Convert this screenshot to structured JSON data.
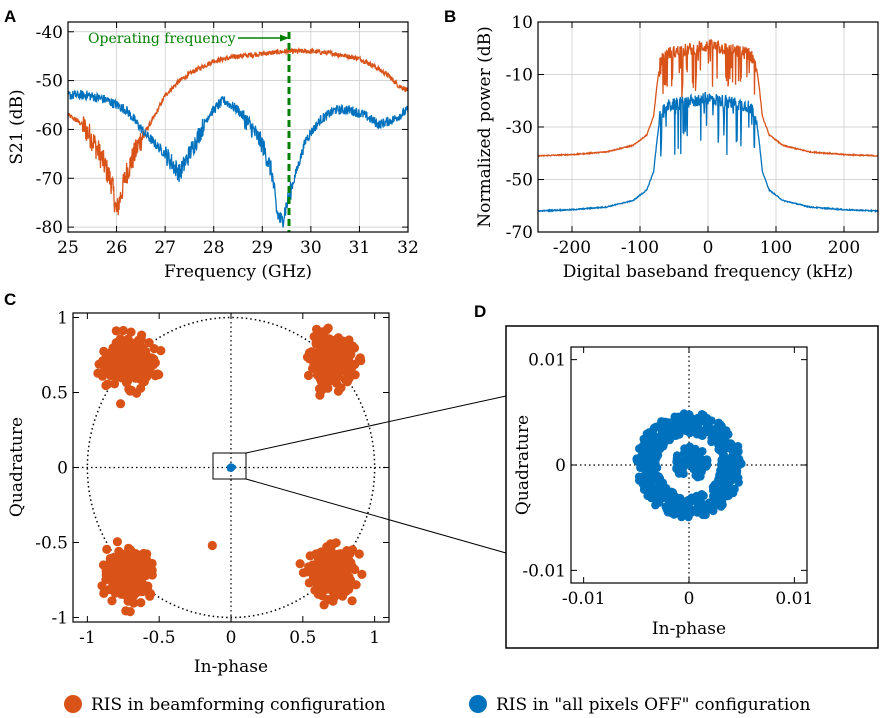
{
  "colors": {
    "orange": "#d95319",
    "blue": "#0072bd",
    "green": "#008000",
    "black": "#000000"
  },
  "legend": [
    {
      "label": "RIS in beamforming configuration",
      "color": "#d95319"
    },
    {
      "label": "RIS in \"all pixels OFF\" configuration",
      "color": "#0072bd"
    }
  ],
  "chart_data": [
    {
      "panel": "A",
      "type": "line",
      "xlabel": "Frequency (GHz)",
      "ylabel": "S21 (dB)",
      "xlim": [
        25,
        32
      ],
      "ylim": [
        -81,
        -38
      ],
      "xticks": [
        25,
        26,
        27,
        28,
        29,
        30,
        31,
        32
      ],
      "xtick_labels": [
        "25",
        "26",
        "27",
        "28",
        "29",
        "30",
        "31",
        "32"
      ],
      "yticks": [
        -40,
        -50,
        -60,
        -70,
        -80
      ],
      "ytick_labels": [
        "-40",
        "-50",
        "-60",
        "-70",
        "-80"
      ],
      "annotation": {
        "text": "Operating frequency",
        "x": 29.5
      },
      "series": [
        {
          "name": "RIS in beamforming configuration",
          "color": "#d95319",
          "x": [
            25.0,
            25.3,
            25.5,
            25.7,
            25.9,
            26.0,
            26.2,
            26.5,
            26.8,
            27.0,
            27.3,
            27.6,
            28.0,
            28.5,
            29.0,
            29.5,
            30.0,
            30.5,
            31.0,
            31.3,
            31.6,
            31.8,
            32.0
          ],
          "y": [
            -57,
            -59,
            -62,
            -66,
            -71,
            -77,
            -69,
            -62,
            -57,
            -53,
            -50,
            -48,
            -46,
            -45,
            -44.5,
            -44,
            -44,
            -44.5,
            -45.5,
            -47,
            -49,
            -51,
            -52
          ]
        },
        {
          "name": "RIS in \"all pixels OFF\" configuration",
          "color": "#0072bd",
          "x": [
            25.0,
            25.4,
            25.8,
            26.2,
            26.6,
            27.0,
            27.3,
            27.6,
            27.9,
            28.2,
            28.5,
            28.8,
            29.0,
            29.2,
            29.3,
            29.4,
            29.6,
            29.9,
            30.2,
            30.5,
            30.8,
            31.1,
            31.4,
            31.7,
            32.0
          ],
          "y": [
            -53,
            -53,
            -54,
            -56,
            -61,
            -65,
            -69,
            -63,
            -57,
            -54,
            -56,
            -60,
            -63,
            -69,
            -77,
            -79,
            -72,
            -62,
            -58,
            -56,
            -56,
            -57,
            -59,
            -58,
            -56
          ]
        }
      ]
    },
    {
      "panel": "B",
      "type": "line",
      "xlabel": "Digital baseband frequency (kHz)",
      "ylabel": "Normalized power (dB)",
      "xlim": [
        -250,
        250
      ],
      "ylim": [
        -70,
        10
      ],
      "xticks": [
        -200,
        -100,
        0,
        100,
        200
      ],
      "xtick_labels": [
        "-200",
        "-100",
        "0",
        "100",
        "200"
      ],
      "yticks": [
        10,
        -10,
        -30,
        -50,
        -70
      ],
      "ytick_labels": [
        "10",
        "-10",
        "-30",
        "-50",
        "-70"
      ],
      "series": [
        {
          "name": "RIS in beamforming configuration",
          "color": "#d95319",
          "x": [
            -250,
            -200,
            -150,
            -110,
            -90,
            -80,
            -75,
            -70,
            -60,
            -40,
            -20,
            0,
            20,
            40,
            60,
            70,
            75,
            80,
            90,
            110,
            150,
            200,
            250
          ],
          "y": [
            -41,
            -40.5,
            -39.5,
            -37,
            -33,
            -26,
            -14,
            -5,
            -2,
            -1,
            0,
            1,
            0,
            -1,
            -2,
            -5,
            -14,
            -26,
            -33,
            -37,
            -39.5,
            -40.5,
            -41
          ]
        },
        {
          "name": "RIS in \"all pixels OFF\" configuration",
          "color": "#0072bd",
          "x": [
            -250,
            -200,
            -150,
            -110,
            -90,
            -80,
            -75,
            -70,
            -60,
            -40,
            -20,
            0,
            20,
            40,
            60,
            70,
            75,
            80,
            90,
            110,
            150,
            200,
            250
          ],
          "y": [
            -62,
            -61.5,
            -60.5,
            -58,
            -54,
            -47,
            -35,
            -25,
            -22,
            -21,
            -20,
            -19,
            -20,
            -21,
            -22,
            -25,
            -35,
            -47,
            -54,
            -58,
            -60.5,
            -61.5,
            -62
          ]
        }
      ]
    },
    {
      "panel": "C",
      "type": "scatter",
      "xlabel": "In-phase",
      "ylabel": "Quadrature",
      "xlim": [
        -1.1,
        1.1
      ],
      "ylim": [
        -1.03,
        1.03
      ],
      "xticks": [
        -1,
        -0.5,
        0,
        0.5,
        1
      ],
      "xtick_labels": [
        "-1",
        "-0.5",
        "0",
        "0.5",
        "1"
      ],
      "yticks": [
        1,
        0.5,
        0,
        -0.5,
        -1
      ],
      "ytick_labels": [
        "1",
        "0.5",
        "0",
        "-0.5",
        "-1"
      ],
      "unit_circle": true,
      "series": [
        {
          "name": "RIS in beamforming configuration",
          "color": "#d95319",
          "clusters": [
            {
              "center": [
                -0.707,
                0.707
              ],
              "spread": 0.075,
              "count": 260
            },
            {
              "center": [
                0.707,
                0.707
              ],
              "spread": 0.075,
              "count": 260
            },
            {
              "center": [
                -0.707,
                -0.707
              ],
              "spread": 0.075,
              "count": 260
            },
            {
              "center": [
                0.707,
                -0.707
              ],
              "spread": 0.075,
              "count": 260
            }
          ],
          "outliers": [
            [
              -0.13,
              -0.52
            ]
          ]
        },
        {
          "name": "RIS in \"all pixels OFF\" configuration",
          "color": "#0072bd",
          "clusters": [
            {
              "center": [
                0,
                0
              ],
              "spread": 0.005,
              "count": 40
            }
          ]
        }
      ]
    },
    {
      "panel": "D",
      "type": "scatter",
      "xlabel": "In-phase",
      "ylabel": "Quadrature",
      "xlim": [
        -0.0112,
        0.0112
      ],
      "ylim": [
        -0.0112,
        0.0112
      ],
      "xticks": [
        -0.01,
        0,
        0.01
      ],
      "xtick_labels": [
        "-0.01",
        "0",
        "0.01"
      ],
      "yticks": [
        0.01,
        0,
        -0.01
      ],
      "ytick_labels": [
        "0.01",
        "0",
        "-0.01"
      ],
      "series": [
        {
          "name": "RIS in \"all pixels OFF\" configuration",
          "color": "#0072bd",
          "ring": {
            "center": [
              0,
              0
            ],
            "outer_radius": 0.005,
            "inner_radius": 0.003,
            "count": 420
          },
          "inner_blob": {
            "center": [
              0.0002,
              0.0002
            ],
            "radius": 0.0016,
            "count": 70
          }
        }
      ]
    }
  ]
}
